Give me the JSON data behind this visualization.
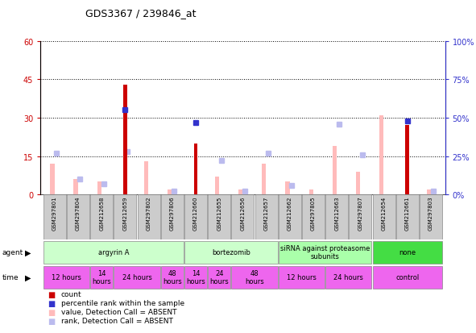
{
  "title": "GDS3367 / 239846_at",
  "samples": [
    "GSM297801",
    "GSM297804",
    "GSM212658",
    "GSM212659",
    "GSM297802",
    "GSM297806",
    "GSM212660",
    "GSM212655",
    "GSM212656",
    "GSM212657",
    "GSM212662",
    "GSM297805",
    "GSM212663",
    "GSM297807",
    "GSM212654",
    "GSM212661",
    "GSM297803"
  ],
  "count_values": [
    0,
    0,
    0,
    43,
    0,
    0,
    20,
    0,
    0,
    0,
    0,
    0,
    0,
    0,
    0,
    27,
    0
  ],
  "percentile_rank": [
    null,
    null,
    null,
    55,
    null,
    null,
    47,
    null,
    null,
    null,
    null,
    null,
    null,
    null,
    null,
    48,
    null
  ],
  "value_absent": [
    12,
    6,
    5,
    null,
    13,
    2,
    null,
    7,
    2,
    12,
    5,
    2,
    19,
    9,
    31,
    null,
    2
  ],
  "rank_absent": [
    27,
    10,
    7,
    28,
    null,
    2,
    null,
    22,
    2,
    27,
    6,
    null,
    46,
    26,
    null,
    null,
    2
  ],
  "ylim_left": [
    0,
    60
  ],
  "ylim_right": [
    0,
    100
  ],
  "yticks_left": [
    0,
    15,
    30,
    45,
    60
  ],
  "yticks_right": [
    0,
    25,
    50,
    75,
    100
  ],
  "ytick_labels_left": [
    "0",
    "15",
    "30",
    "45",
    "60"
  ],
  "ytick_labels_right": [
    "0%",
    "25%",
    "50%",
    "75%",
    "100%"
  ],
  "agent_groups": [
    {
      "label": "argyrin A",
      "start": 0,
      "end": 6,
      "color": "#ccffcc"
    },
    {
      "label": "bortezomib",
      "start": 6,
      "end": 10,
      "color": "#ccffcc"
    },
    {
      "label": "siRNA against proteasome\nsubunits",
      "start": 10,
      "end": 14,
      "color": "#aaffaa"
    },
    {
      "label": "none",
      "start": 14,
      "end": 17,
      "color": "#44dd44"
    }
  ],
  "time_groups": [
    {
      "label": "12 hours",
      "start": 0,
      "end": 2,
      "color": "#ee66ee"
    },
    {
      "label": "14\nhours",
      "start": 2,
      "end": 3,
      "color": "#ee66ee"
    },
    {
      "label": "24 hours",
      "start": 3,
      "end": 5,
      "color": "#ee66ee"
    },
    {
      "label": "48\nhours",
      "start": 5,
      "end": 6,
      "color": "#ee66ee"
    },
    {
      "label": "14\nhours",
      "start": 6,
      "end": 7,
      "color": "#ee66ee"
    },
    {
      "label": "24\nhours",
      "start": 7,
      "end": 8,
      "color": "#ee66ee"
    },
    {
      "label": "48\nhours",
      "start": 8,
      "end": 10,
      "color": "#ee66ee"
    },
    {
      "label": "12 hours",
      "start": 10,
      "end": 12,
      "color": "#ee66ee"
    },
    {
      "label": "24 hours",
      "start": 12,
      "end": 14,
      "color": "#ee66ee"
    },
    {
      "label": "control",
      "start": 14,
      "end": 17,
      "color": "#ee66ee"
    }
  ],
  "bar_color_count": "#cc0000",
  "bar_color_percentile": "#3333cc",
  "bar_color_value_absent": "#ffbbbb",
  "bar_color_rank_absent": "#bbbbee",
  "bg_color": "#ffffff",
  "plot_bg": "#ffffff",
  "axis_color_left": "#cc0000",
  "axis_color_right": "#3333cc",
  "sample_bg": "#cccccc",
  "legend_items": [
    {
      "color": "#cc0000",
      "label": "count"
    },
    {
      "color": "#3333cc",
      "label": "percentile rank within the sample"
    },
    {
      "color": "#ffbbbb",
      "label": "value, Detection Call = ABSENT"
    },
    {
      "color": "#bbbbee",
      "label": "rank, Detection Call = ABSENT"
    }
  ]
}
